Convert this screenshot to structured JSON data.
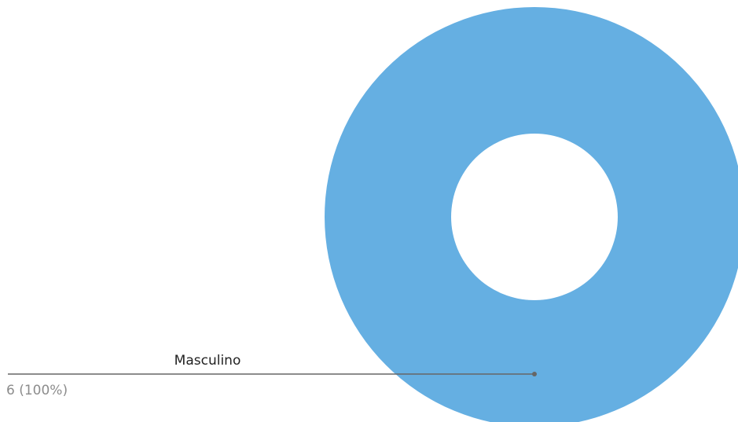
{
  "chart_data": {
    "type": "pie",
    "donut": true,
    "slices": [
      {
        "label": "Masculino",
        "value": 6,
        "percent_label": "6 (100%)",
        "color": "#65afe2"
      }
    ],
    "leader_line_color": "#666666",
    "label_color": "#222222",
    "value_label_color": "#8c8c8c"
  }
}
